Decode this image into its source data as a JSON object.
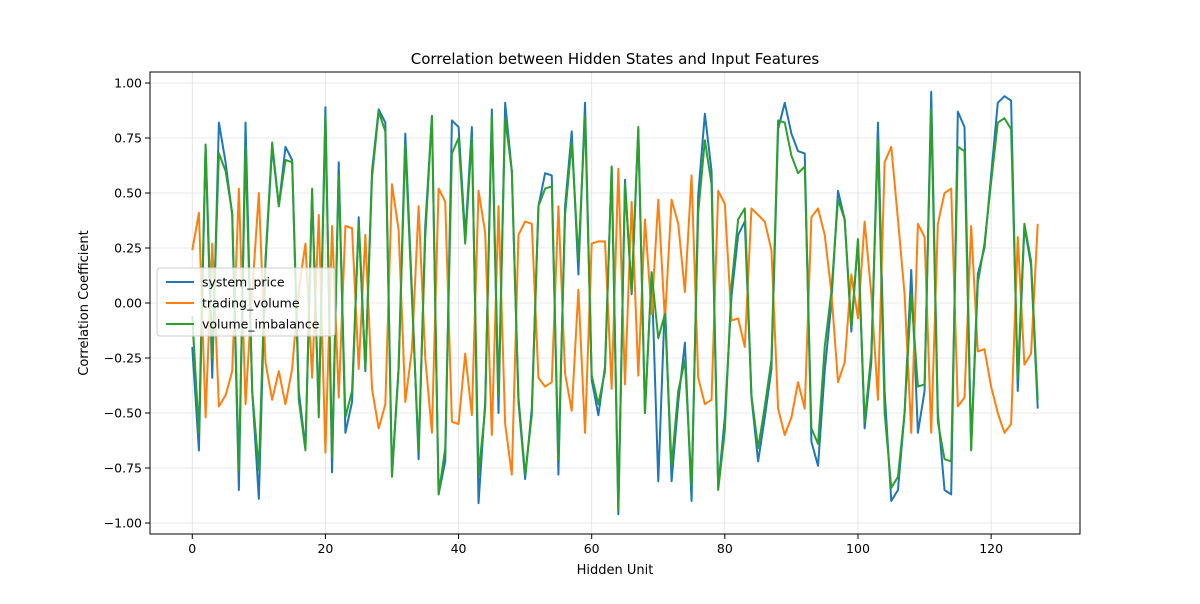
{
  "chart_data": {
    "type": "line",
    "title": "Correlation between Hidden States and Input Features",
    "xlabel": "Hidden Unit",
    "ylabel": "Correlation Coefficient",
    "xlim": [
      -6.35,
      133.35
    ],
    "ylim": [
      -1.05,
      1.05
    ],
    "xticks": [
      0,
      20,
      40,
      60,
      80,
      100,
      120
    ],
    "yticks": [
      -1.0,
      -0.75,
      -0.5,
      -0.25,
      0.0,
      0.25,
      0.5,
      0.75,
      1.0
    ],
    "grid": true,
    "legend_position": "center-left",
    "x": [
      0,
      1,
      2,
      3,
      4,
      5,
      6,
      7,
      8,
      9,
      10,
      11,
      12,
      13,
      14,
      15,
      16,
      17,
      18,
      19,
      20,
      21,
      22,
      23,
      24,
      25,
      26,
      27,
      28,
      29,
      30,
      31,
      32,
      33,
      34,
      35,
      36,
      37,
      38,
      39,
      40,
      41,
      42,
      43,
      44,
      45,
      46,
      47,
      48,
      49,
      50,
      51,
      52,
      53,
      54,
      55,
      56,
      57,
      58,
      59,
      60,
      61,
      62,
      63,
      64,
      65,
      66,
      67,
      68,
      69,
      70,
      71,
      72,
      73,
      74,
      75,
      76,
      77,
      78,
      79,
      80,
      81,
      82,
      83,
      84,
      85,
      86,
      87,
      88,
      89,
      90,
      91,
      92,
      93,
      94,
      95,
      96,
      97,
      98,
      99,
      100,
      101,
      102,
      103,
      104,
      105,
      106,
      107,
      108,
      109,
      110,
      111,
      112,
      113,
      114,
      115,
      116,
      117,
      118,
      119,
      120,
      121,
      122,
      123,
      124,
      125,
      126,
      127
    ],
    "series": [
      {
        "name": "system_price",
        "color": "#1f77b4",
        "values": [
          -0.2,
          -0.67,
          0.72,
          -0.34,
          0.82,
          0.64,
          0.4,
          -0.85,
          0.82,
          -0.4,
          -0.89,
          0.18,
          0.71,
          0.44,
          0.71,
          0.65,
          -0.4,
          -0.66,
          0.5,
          -0.5,
          0.89,
          -0.77,
          0.64,
          -0.59,
          -0.45,
          0.39,
          -0.31,
          0.6,
          0.88,
          0.82,
          -0.78,
          -0.29,
          0.77,
          0.05,
          -0.71,
          0.35,
          0.85,
          -0.87,
          -0.72,
          0.83,
          0.8,
          0.3,
          0.8,
          -0.91,
          -0.45,
          0.88,
          -0.5,
          0.91,
          0.6,
          -0.45,
          -0.8,
          -0.48,
          0.44,
          0.59,
          0.58,
          -0.78,
          0.44,
          0.78,
          0.13,
          0.91,
          -0.35,
          -0.51,
          -0.29,
          0.62,
          -0.96,
          0.56,
          0.04,
          0.79,
          -0.5,
          0.14,
          -0.81,
          0.01,
          -0.81,
          -0.45,
          -0.18,
          -0.9,
          0.49,
          0.86,
          0.6,
          -0.84,
          -0.52,
          0.03,
          0.31,
          0.37,
          -0.43,
          -0.72,
          -0.52,
          -0.3,
          0.79,
          0.91,
          0.77,
          0.69,
          0.68,
          -0.63,
          -0.74,
          -0.31,
          0.0,
          0.51,
          0.38,
          -0.13,
          0.29,
          -0.57,
          -0.27,
          0.82,
          -0.4,
          -0.9,
          -0.85,
          -0.5,
          0.15,
          -0.59,
          -0.4,
          0.96,
          -0.5,
          -0.85,
          -0.87,
          0.87,
          0.8,
          -0.66,
          0.13,
          0.25,
          0.58,
          0.91,
          0.94,
          0.92,
          -0.4,
          0.35,
          0.17,
          -0.48
        ]
      },
      {
        "name": "trading_volume",
        "color": "#ff7f0e",
        "values": [
          0.24,
          0.41,
          -0.52,
          0.27,
          -0.47,
          -0.42,
          -0.31,
          0.52,
          -0.46,
          0.05,
          0.5,
          -0.27,
          -0.44,
          -0.31,
          -0.46,
          -0.3,
          0.06,
          0.27,
          -0.34,
          0.4,
          -0.68,
          0.35,
          -0.43,
          0.35,
          0.34,
          -0.3,
          0.31,
          -0.39,
          -0.57,
          -0.46,
          0.54,
          0.33,
          -0.45,
          -0.21,
          0.44,
          -0.25,
          -0.59,
          0.52,
          0.46,
          -0.54,
          -0.55,
          -0.23,
          -0.51,
          0.51,
          0.32,
          -0.6,
          0.44,
          -0.55,
          -0.78,
          0.31,
          0.37,
          0.36,
          -0.34,
          -0.38,
          -0.36,
          0.44,
          -0.32,
          -0.49,
          0.06,
          -0.59,
          0.27,
          0.28,
          0.28,
          -0.39,
          0.61,
          -0.37,
          0.46,
          -0.33,
          0.38,
          -0.05,
          0.47,
          -0.08,
          0.47,
          0.36,
          0.05,
          0.58,
          -0.34,
          -0.46,
          -0.44,
          0.51,
          0.45,
          -0.08,
          -0.07,
          -0.2,
          0.43,
          0.4,
          0.37,
          0.24,
          -0.48,
          -0.6,
          -0.52,
          -0.36,
          -0.48,
          0.39,
          0.43,
          0.31,
          0.05,
          -0.36,
          -0.27,
          0.13,
          -0.07,
          0.37,
          0.04,
          -0.44,
          0.64,
          0.71,
          0.38,
          0.04,
          -0.59,
          0.36,
          0.3,
          -0.59,
          0.36,
          0.5,
          0.52,
          -0.47,
          -0.43,
          0.35,
          -0.22,
          -0.21,
          -0.38,
          -0.5,
          -0.59,
          -0.55,
          0.3,
          -0.28,
          -0.23,
          0.36
        ]
      },
      {
        "name": "volume_imbalance",
        "color": "#2ca02c",
        "values": [
          -0.06,
          -0.59,
          0.72,
          -0.25,
          0.68,
          0.6,
          0.41,
          -0.76,
          0.71,
          -0.4,
          -0.76,
          0.2,
          0.73,
          0.44,
          0.65,
          0.64,
          -0.44,
          -0.67,
          0.52,
          -0.52,
          0.85,
          -0.7,
          0.58,
          -0.52,
          -0.4,
          0.36,
          -0.3,
          0.57,
          0.87,
          0.78,
          -0.79,
          -0.3,
          0.72,
          0.02,
          -0.67,
          0.3,
          0.85,
          -0.87,
          -0.66,
          0.68,
          0.75,
          0.27,
          0.75,
          -0.78,
          -0.48,
          0.85,
          -0.42,
          0.84,
          0.6,
          -0.43,
          -0.78,
          -0.51,
          0.44,
          0.52,
          0.53,
          -0.71,
          0.4,
          0.73,
          0.2,
          0.85,
          -0.33,
          -0.46,
          -0.31,
          0.62,
          -0.94,
          0.54,
          0.05,
          0.8,
          -0.5,
          0.14,
          -0.16,
          -0.05,
          -0.74,
          -0.4,
          -0.26,
          -0.83,
          0.41,
          0.74,
          0.54,
          -0.85,
          -0.58,
          0.08,
          0.38,
          0.43,
          -0.42,
          -0.66,
          -0.47,
          -0.26,
          0.83,
          0.82,
          0.67,
          0.59,
          0.62,
          -0.57,
          -0.64,
          -0.2,
          0.05,
          0.47,
          0.38,
          -0.11,
          0.29,
          -0.54,
          -0.23,
          0.74,
          -0.5,
          -0.84,
          -0.79,
          -0.5,
          0.04,
          -0.38,
          -0.37,
          0.88,
          -0.54,
          -0.71,
          -0.72,
          0.71,
          0.69,
          -0.67,
          0.09,
          0.27,
          0.55,
          0.82,
          0.84,
          0.79,
          -0.34,
          0.36,
          0.19,
          -0.44
        ]
      }
    ]
  }
}
